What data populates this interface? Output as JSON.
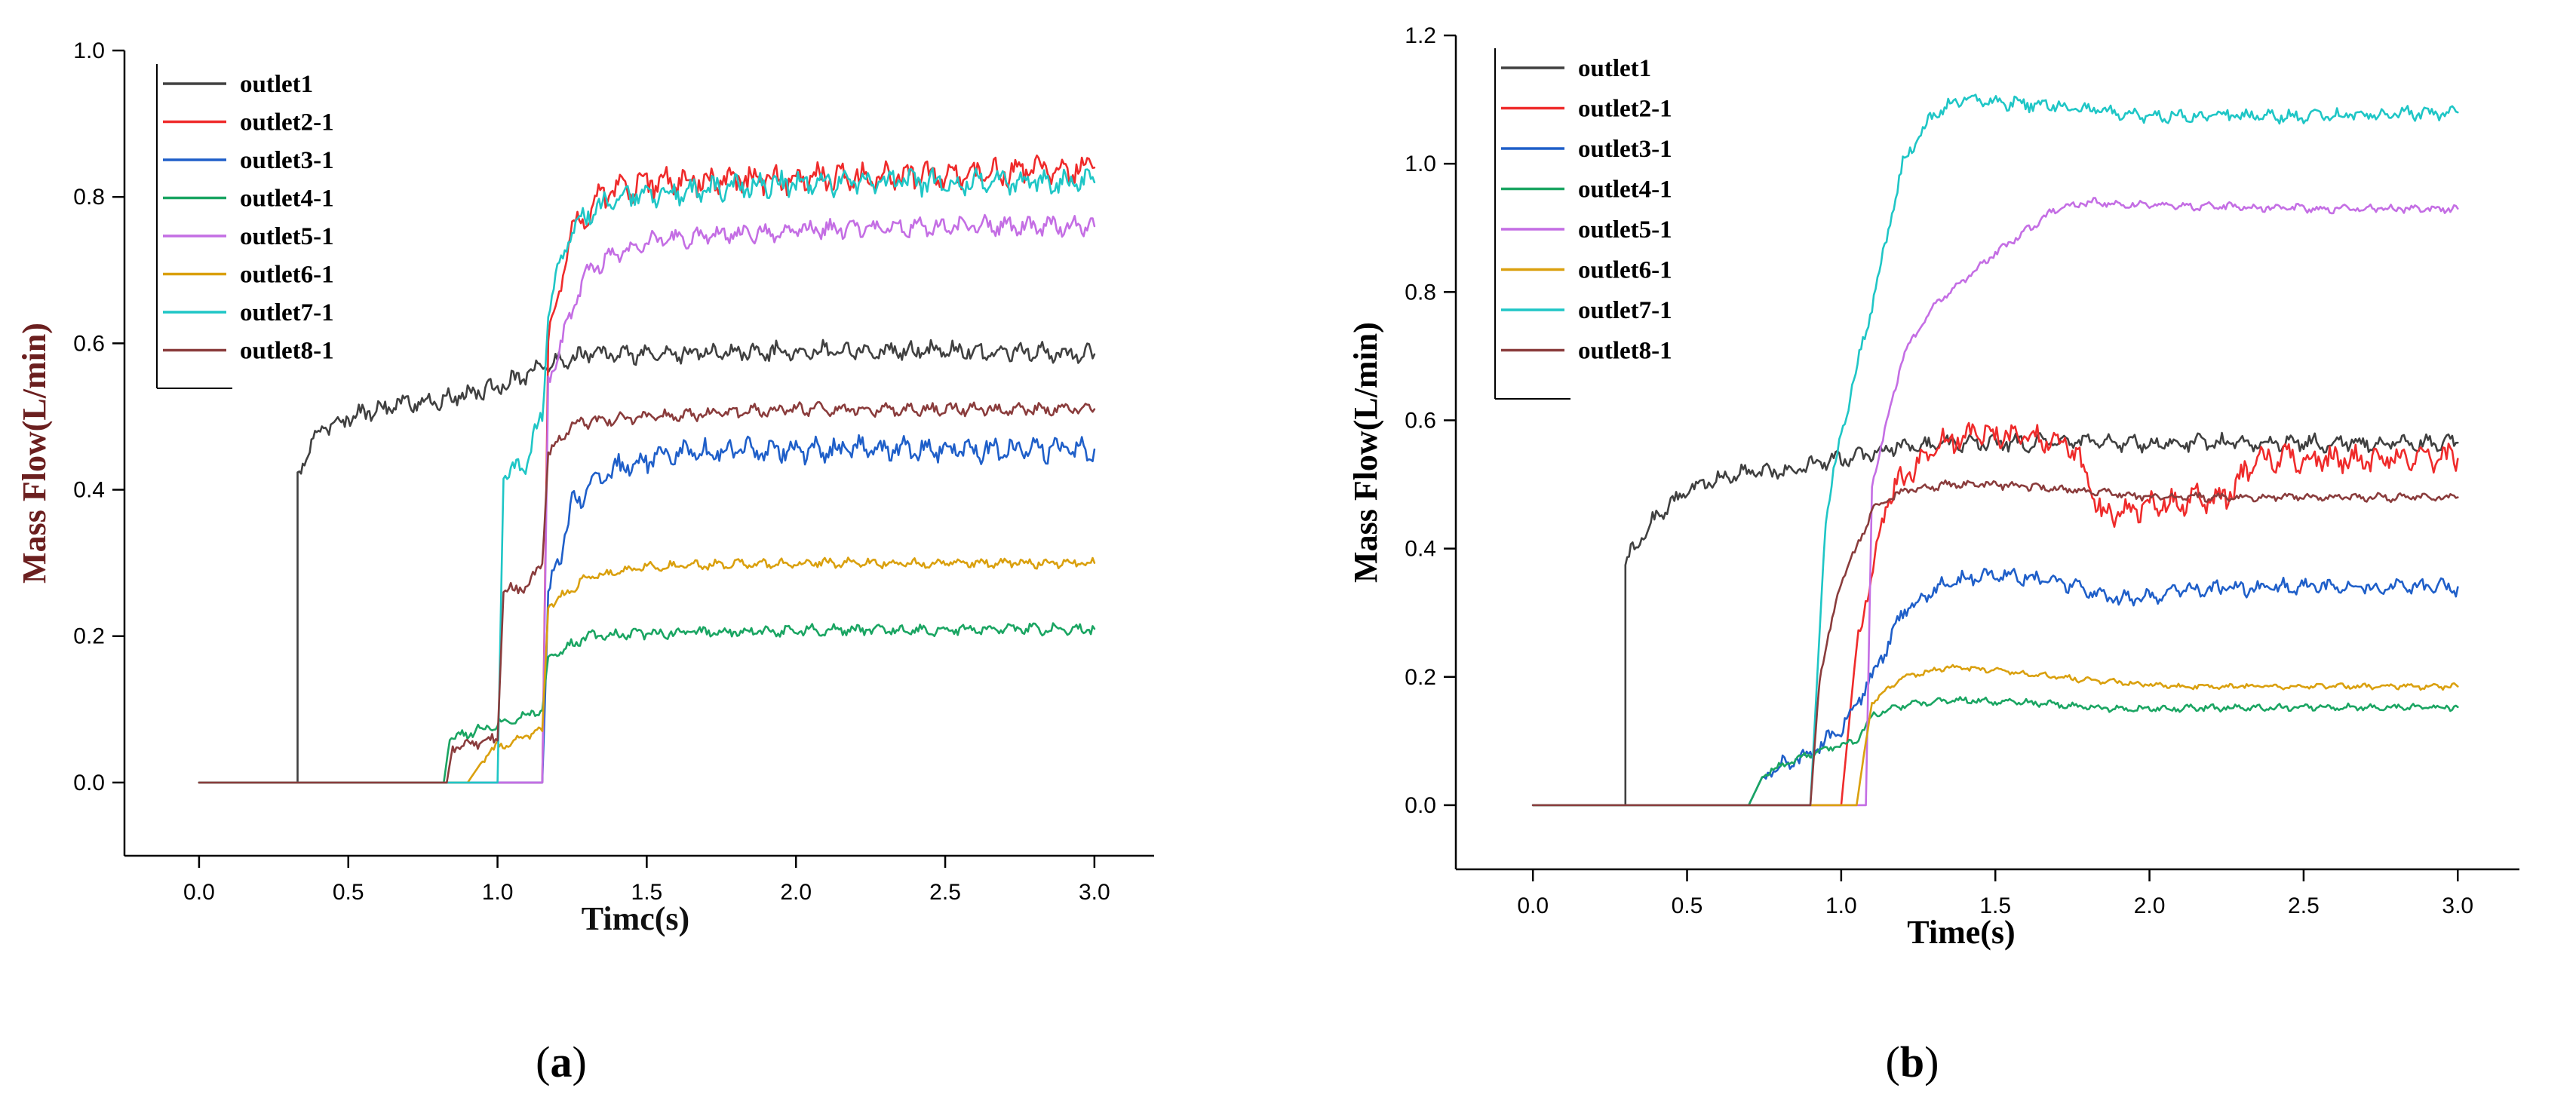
{
  "colors": {
    "outlet1": "#404040",
    "outlet2": "#ef2b2b",
    "outlet3": "#1f5fc9",
    "outlet4": "#1aa562",
    "outlet5": "#c46ee4",
    "outlet6": "#daa00e",
    "outlet7": "#1fc6c6",
    "outlet8": "#8a3c3c",
    "ylabel_a": "#6b1f1f",
    "xlabel_a": "#111111",
    "ylabel_b": "#000000",
    "xlabel_b": "#000000"
  },
  "chart_data": [
    {
      "id": "a",
      "type": "line",
      "panel_label": "(a)",
      "panel_prefix": "(",
      "panel_letter": "a",
      "panel_suffix": ")",
      "xlabel": "Timc(s)",
      "ylabel": "Mass Flow(L/min)",
      "xlim": [
        -0.25,
        3.2
      ],
      "ylim": [
        -0.1,
        1.0
      ],
      "xticks": [
        0.0,
        0.5,
        1.0,
        1.5,
        2.0,
        2.5,
        3.0
      ],
      "xtick_labels": [
        "0.0",
        "0.5",
        "1.0",
        "1.5",
        "2.0",
        "2.5",
        "3.0"
      ],
      "yticks": [
        0.0,
        0.2,
        0.4,
        0.6,
        0.8,
        1.0
      ],
      "ytick_labels": [
        "0.0",
        "0.2",
        "0.4",
        "0.6",
        "0.8",
        "1.0"
      ],
      "legend_position": "top-left",
      "series": [
        {
          "name": "outlet1",
          "color_key": "outlet1",
          "x": [
            0,
            0.33,
            0.33,
            0.4,
            0.5,
            0.6,
            0.7,
            0.8,
            0.9,
            1.0,
            1.1,
            1.2,
            1.3,
            1.5,
            2.0,
            2.5,
            3.0
          ],
          "y": [
            0,
            0,
            0.42,
            0.48,
            0.5,
            0.51,
            0.52,
            0.52,
            0.53,
            0.54,
            0.56,
            0.575,
            0.585,
            0.585,
            0.59,
            0.59,
            0.585
          ],
          "noise": 0.012
        },
        {
          "name": "outlet2-1",
          "color_key": "outlet2",
          "x": [
            0,
            1.15,
            1.17,
            1.25,
            1.35,
            1.5,
            2.0,
            2.5,
            3.0
          ],
          "y": [
            0,
            0,
            0.6,
            0.76,
            0.8,
            0.82,
            0.825,
            0.83,
            0.84
          ],
          "noise": 0.018
        },
        {
          "name": "outlet3-1",
          "color_key": "outlet3",
          "x": [
            0,
            1.15,
            1.17,
            1.25,
            1.4,
            1.6,
            2.0,
            2.5,
            3.0
          ],
          "y": [
            0,
            0,
            0.25,
            0.38,
            0.43,
            0.45,
            0.455,
            0.455,
            0.455
          ],
          "noise": 0.016
        },
        {
          "name": "outlet4-1",
          "color_key": "outlet4",
          "x": [
            0,
            0.82,
            0.84,
            1.0,
            1.15,
            1.17,
            1.3,
            1.6,
            2.0,
            2.5,
            3.0
          ],
          "y": [
            0,
            0,
            0.06,
            0.08,
            0.1,
            0.17,
            0.2,
            0.205,
            0.208,
            0.208,
            0.21
          ],
          "noise": 0.007
        },
        {
          "name": "outlet5-1",
          "color_key": "outlet5",
          "x": [
            0,
            1.15,
            1.17,
            1.3,
            1.5,
            2.0,
            2.5,
            3.0
          ],
          "y": [
            0,
            0,
            0.55,
            0.7,
            0.74,
            0.755,
            0.76,
            0.76
          ],
          "noise": 0.012
        },
        {
          "name": "outlet6-1",
          "color_key": "outlet6",
          "x": [
            0,
            0.9,
            0.95,
            1.0,
            1.15,
            1.17,
            1.3,
            1.5,
            2.0,
            2.5,
            3.0
          ],
          "y": [
            0,
            0,
            0.03,
            0.05,
            0.07,
            0.24,
            0.28,
            0.295,
            0.3,
            0.3,
            0.3
          ],
          "noise": 0.006
        },
        {
          "name": "outlet7-1",
          "color_key": "outlet7",
          "x": [
            0,
            1.0,
            1.02,
            1.1,
            1.15,
            1.17,
            1.25,
            1.4,
            2.0,
            2.5,
            3.0
          ],
          "y": [
            0,
            0,
            0.42,
            0.44,
            0.5,
            0.65,
            0.76,
            0.8,
            0.82,
            0.82,
            0.82
          ],
          "noise": 0.016
        },
        {
          "name": "outlet8-1",
          "color_key": "outlet8",
          "x": [
            0,
            0.83,
            0.85,
            1.0,
            1.02,
            1.1,
            1.15,
            1.17,
            1.25,
            1.5,
            2.0,
            2.5,
            3.0
          ],
          "y": [
            0,
            0,
            0.05,
            0.06,
            0.26,
            0.27,
            0.3,
            0.45,
            0.49,
            0.5,
            0.51,
            0.51,
            0.51
          ],
          "noise": 0.008
        }
      ]
    },
    {
      "id": "b",
      "type": "line",
      "panel_label": "(b)",
      "panel_prefix": "(",
      "panel_letter": "b",
      "panel_suffix": ")",
      "xlabel": "Time(s)",
      "ylabel": "Mass Flow(L/min)",
      "xlim": [
        -0.25,
        3.2
      ],
      "ylim": [
        -0.1,
        1.2
      ],
      "xticks": [
        0.0,
        0.5,
        1.0,
        1.5,
        2.0,
        2.5,
        3.0
      ],
      "xtick_labels": [
        "0.0",
        "0.5",
        "1.0",
        "1.5",
        "2.0",
        "2.5",
        "3.0"
      ],
      "yticks": [
        0.0,
        0.2,
        0.4,
        0.6,
        0.8,
        1.0,
        1.2
      ],
      "ytick_labels": [
        "0.0",
        "0.2",
        "0.4",
        "0.6",
        "0.8",
        "1.0",
        "1.2"
      ],
      "legend_position": "top-left",
      "series": [
        {
          "name": "outlet1",
          "color_key": "outlet1",
          "x": [
            0,
            0.3,
            0.3,
            0.4,
            0.5,
            0.6,
            0.7,
            0.8,
            1.0,
            1.2,
            1.5,
            2.0,
            2.5,
            3.0
          ],
          "y": [
            0,
            0,
            0.38,
            0.45,
            0.49,
            0.51,
            0.52,
            0.52,
            0.54,
            0.56,
            0.565,
            0.565,
            0.565,
            0.565
          ],
          "noise": 0.012
        },
        {
          "name": "outlet2-1",
          "color_key": "outlet2",
          "x": [
            0,
            1.0,
            1.05,
            1.15,
            1.3,
            1.45,
            1.6,
            1.75,
            1.85,
            2.0,
            2.25,
            2.35,
            2.5,
            3.0
          ],
          "y": [
            0,
            0,
            0.25,
            0.48,
            0.56,
            0.58,
            0.575,
            0.56,
            0.45,
            0.47,
            0.48,
            0.54,
            0.54,
            0.54
          ],
          "noise": 0.02
        },
        {
          "name": "outlet3-1",
          "color_key": "outlet3",
          "x": [
            0,
            0.7,
            0.75,
            0.9,
            1.0,
            1.1,
            1.2,
            1.35,
            1.5,
            1.7,
            1.9,
            2.1,
            2.5,
            3.0
          ],
          "y": [
            0,
            0,
            0.05,
            0.08,
            0.12,
            0.2,
            0.3,
            0.35,
            0.36,
            0.35,
            0.32,
            0.335,
            0.34,
            0.34
          ],
          "noise": 0.012
        },
        {
          "name": "outlet4-1",
          "color_key": "outlet4",
          "x": [
            0,
            0.7,
            0.75,
            0.9,
            1.05,
            1.1,
            1.2,
            1.35,
            1.6,
            1.9,
            2.5,
            3.0
          ],
          "y": [
            0,
            0,
            0.05,
            0.08,
            0.1,
            0.14,
            0.155,
            0.165,
            0.16,
            0.15,
            0.153,
            0.153
          ],
          "noise": 0.005
        },
        {
          "name": "outlet5-1",
          "color_key": "outlet5",
          "x": [
            0,
            1.08,
            1.1,
            1.2,
            1.3,
            1.5,
            1.7,
            1.8,
            2.0,
            2.5,
            3.0
          ],
          "y": [
            0,
            0,
            0.5,
            0.7,
            0.78,
            0.86,
            0.93,
            0.94,
            0.935,
            0.93,
            0.93
          ],
          "noise": 0.006
        },
        {
          "name": "outlet6-1",
          "color_key": "outlet6",
          "x": [
            0,
            1.05,
            1.08,
            1.1,
            1.2,
            1.35,
            1.5,
            1.8,
            2.1,
            2.5,
            3.0
          ],
          "y": [
            0,
            0,
            0.1,
            0.16,
            0.2,
            0.215,
            0.21,
            0.195,
            0.185,
            0.185,
            0.185
          ],
          "noise": 0.004
        },
        {
          "name": "outlet7-1",
          "color_key": "outlet7",
          "x": [
            0,
            0.9,
            0.95,
            1.0,
            1.1,
            1.2,
            1.3,
            1.4,
            1.7,
            2.0,
            2.5,
            3.0
          ],
          "y": [
            0,
            0,
            0.45,
            0.58,
            0.78,
            1.0,
            1.08,
            1.1,
            1.09,
            1.075,
            1.075,
            1.08
          ],
          "noise": 0.01
        },
        {
          "name": "outlet8-1",
          "color_key": "outlet8",
          "x": [
            0,
            0.9,
            0.93,
            1.0,
            1.05,
            1.1,
            1.2,
            1.35,
            1.5,
            1.8,
            2.0,
            2.5,
            3.0
          ],
          "y": [
            0,
            0,
            0.2,
            0.35,
            0.4,
            0.46,
            0.49,
            0.5,
            0.5,
            0.49,
            0.48,
            0.48,
            0.48
          ],
          "noise": 0.006
        }
      ]
    }
  ]
}
